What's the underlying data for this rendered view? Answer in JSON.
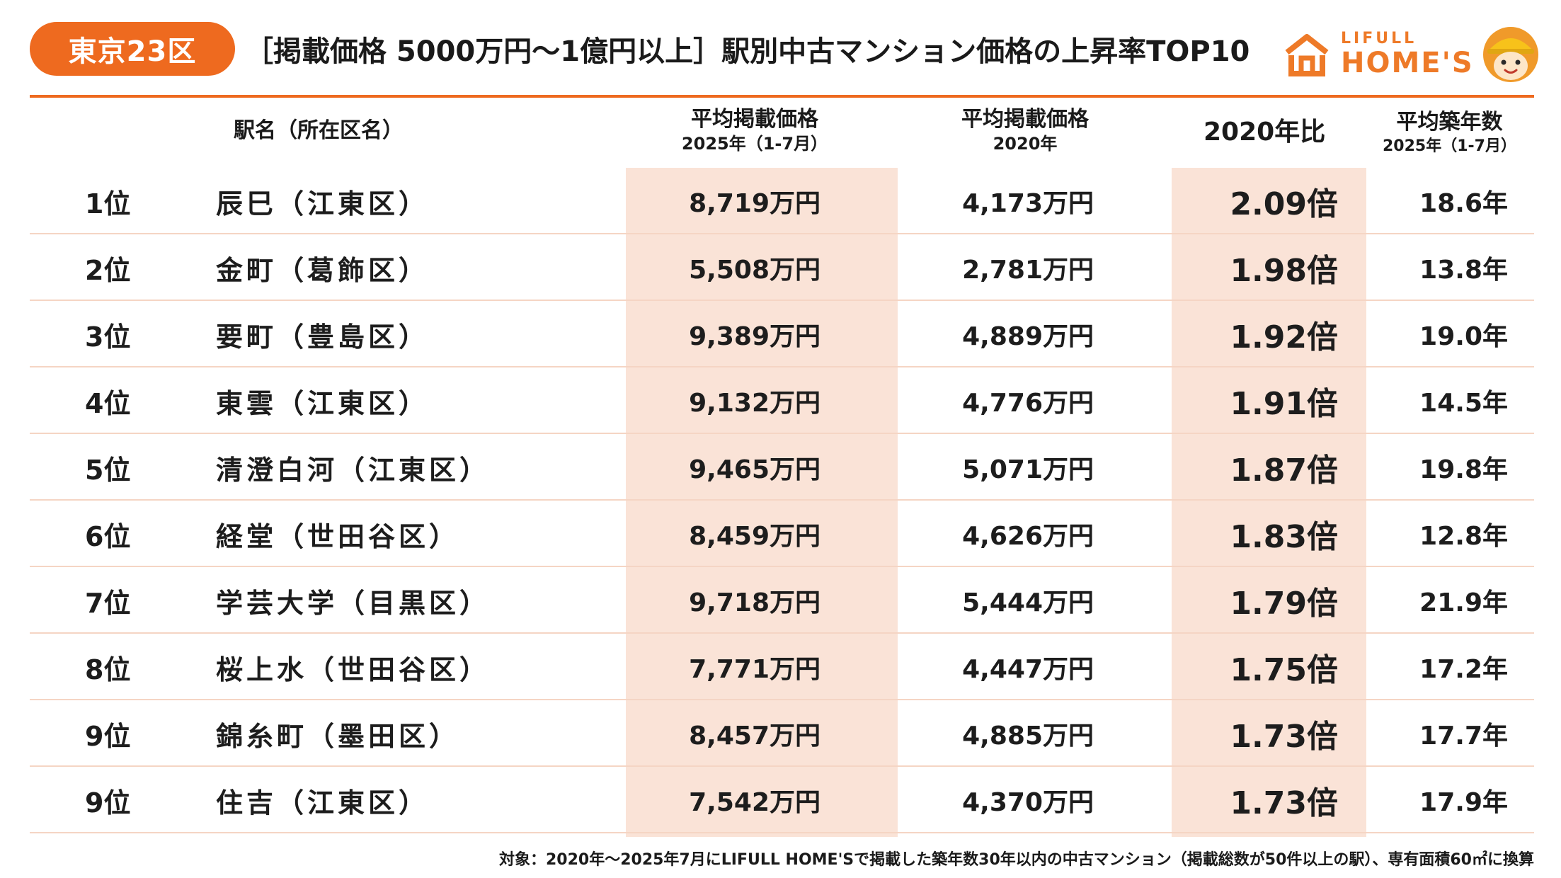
{
  "header": {
    "region_badge": "東京23区",
    "title": "［掲載価格 5000万円〜1億円以上］駅別中古マンション価格の上昇率TOP10",
    "logo_top": "LIFULL",
    "logo_bottom": "HOME'S",
    "accent_color": "#ee6a1f",
    "highlight_color": "#fae3d7"
  },
  "chart_data": {
    "type": "table",
    "title": "［掲載価格 5000万円〜1億円以上］駅別中古マンション価格の上昇率TOP10",
    "columns": [
      {
        "key": "station",
        "label": "駅名（所在区名）",
        "sub": ""
      },
      {
        "key": "price_2025",
        "label": "平均掲載価格",
        "sub": "2025年（1-7月）"
      },
      {
        "key": "price_2020",
        "label": "平均掲載価格",
        "sub": "2020年"
      },
      {
        "key": "ratio",
        "label": "2020年比",
        "sub": ""
      },
      {
        "key": "age",
        "label": "平均築年数",
        "sub": "2025年（1-7月）"
      }
    ],
    "rows": [
      {
        "rank": "1位",
        "station": "辰巳（江東区）",
        "price_2025": "8,719万円",
        "price_2020": "4,173万円",
        "ratio": "2.09倍",
        "age": "18.6年"
      },
      {
        "rank": "2位",
        "station": "金町（葛飾区）",
        "price_2025": "5,508万円",
        "price_2020": "2,781万円",
        "ratio": "1.98倍",
        "age": "13.8年"
      },
      {
        "rank": "3位",
        "station": "要町（豊島区）",
        "price_2025": "9,389万円",
        "price_2020": "4,889万円",
        "ratio": "1.92倍",
        "age": "19.0年"
      },
      {
        "rank": "4位",
        "station": "東雲（江東区）",
        "price_2025": "9,132万円",
        "price_2020": "4,776万円",
        "ratio": "1.91倍",
        "age": "14.5年"
      },
      {
        "rank": "5位",
        "station": "清澄白河（江東区）",
        "price_2025": "9,465万円",
        "price_2020": "5,071万円",
        "ratio": "1.87倍",
        "age": "19.8年"
      },
      {
        "rank": "6位",
        "station": "経堂（世田谷区）",
        "price_2025": "8,459万円",
        "price_2020": "4,626万円",
        "ratio": "1.83倍",
        "age": "12.8年"
      },
      {
        "rank": "7位",
        "station": "学芸大学（目黒区）",
        "price_2025": "9,718万円",
        "price_2020": "5,444万円",
        "ratio": "1.79倍",
        "age": "21.9年"
      },
      {
        "rank": "8位",
        "station": "桜上水（世田谷区）",
        "price_2025": "7,771万円",
        "price_2020": "4,447万円",
        "ratio": "1.75倍",
        "age": "17.2年"
      },
      {
        "rank": "9位",
        "station": "錦糸町（墨田区）",
        "price_2025": "8,457万円",
        "price_2020": "4,885万円",
        "ratio": "1.73倍",
        "age": "17.7年"
      },
      {
        "rank": "9位",
        "station": "住吉（江東区）",
        "price_2025": "7,542万円",
        "price_2020": "4,370万円",
        "ratio": "1.73倍",
        "age": "17.9年"
      }
    ]
  },
  "footnote": "対象：2020年〜2025年7月にLIFULL HOME'Sで掲載した築年数30年以内の中古マンション（掲載総数が50件以上の駅）、専有面積60㎡に換算"
}
